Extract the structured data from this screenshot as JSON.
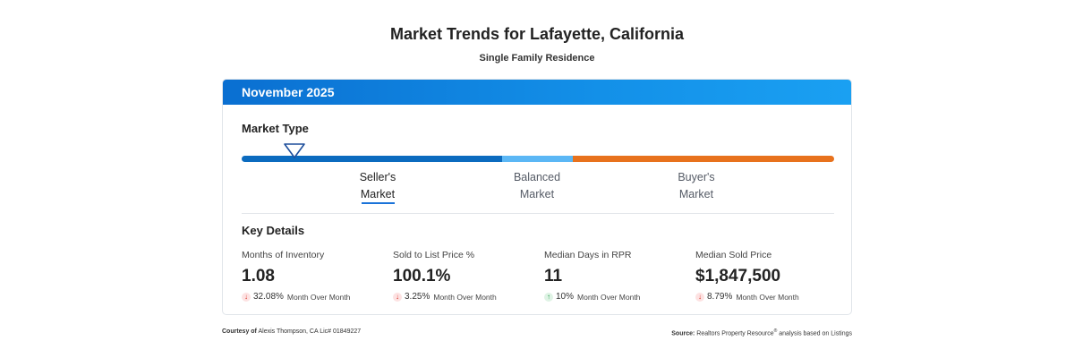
{
  "title": "Market Trends for Lafayette, California",
  "subtitle": "Single Family Residence",
  "card": {
    "period": "November 2025",
    "market_type": {
      "heading": "Market Type",
      "labels": [
        {
          "line1": "Seller's",
          "line2": "Market"
        },
        {
          "line1": "Balanced",
          "line2": "Market"
        },
        {
          "line1": "Buyer's",
          "line2": "Market"
        }
      ],
      "active": "Seller's Market",
      "colors": {
        "seller": "#0b6bbf",
        "balanced": "#5bb7f5",
        "buyer": "#e8721d"
      }
    },
    "key_details": {
      "heading": "Key Details",
      "items": [
        {
          "label": "Months of Inventory",
          "value": "1.08",
          "direction": "down",
          "change": "32.08%",
          "change_text": "Month Over Month"
        },
        {
          "label": "Sold to List Price %",
          "value": "100.1%",
          "direction": "down",
          "change": "3.25%",
          "change_text": "Month Over Month"
        },
        {
          "label": "Median Days in RPR",
          "value": "11",
          "direction": "up",
          "change": "10%",
          "change_text": "Month Over Month"
        },
        {
          "label": "Median Sold Price",
          "value": "$1,847,500",
          "direction": "down",
          "change": "8.79%",
          "change_text": "Month Over Month"
        }
      ]
    }
  },
  "footer": {
    "courtesy_label": "Courtesy of",
    "courtesy_text": "Alexis Thompson, CA Lic# 01849227",
    "source_label": "Source:",
    "source_text_a": "Realtors Property Resource",
    "source_sup": "®",
    "source_text_b": " analysis based on Listings"
  }
}
